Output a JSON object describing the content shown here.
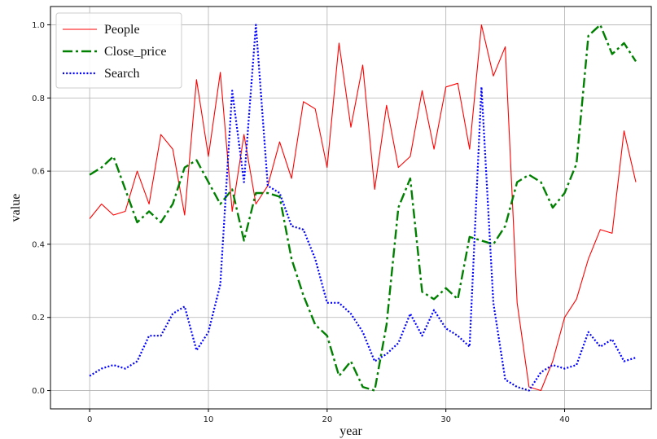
{
  "chart_data": {
    "type": "line",
    "title": "",
    "xlabel": "year",
    "ylabel": "value",
    "xlim": [
      -3.3,
      47.3
    ],
    "ylim": [
      -0.05,
      1.05
    ],
    "xticks": [
      0,
      10,
      20,
      30,
      40
    ],
    "yticks": [
      0.0,
      0.2,
      0.4,
      0.6,
      0.8,
      1.0
    ],
    "xtick_labels": [
      "0",
      "10",
      "20",
      "30",
      "40"
    ],
    "ytick_labels": [
      "0.0",
      "0.2",
      "0.4",
      "0.6",
      "0.8",
      "1.0"
    ],
    "grid": true,
    "legend_position": "upper-left",
    "x": [
      0,
      1,
      2,
      3,
      4,
      5,
      6,
      7,
      8,
      9,
      10,
      11,
      12,
      13,
      14,
      15,
      16,
      17,
      18,
      19,
      20,
      21,
      22,
      23,
      24,
      25,
      26,
      27,
      28,
      29,
      30,
      31,
      32,
      33,
      34,
      35,
      36,
      37,
      38,
      39,
      40,
      41,
      42,
      43,
      44,
      45,
      46
    ],
    "series": [
      {
        "name": "People",
        "color": "#ff0000",
        "style": "solid",
        "values": [
          0.47,
          0.51,
          0.48,
          0.49,
          0.6,
          0.51,
          0.7,
          0.66,
          0.48,
          0.85,
          0.64,
          0.87,
          0.49,
          0.7,
          0.51,
          0.56,
          0.68,
          0.58,
          0.79,
          0.77,
          0.61,
          0.95,
          0.72,
          0.89,
          0.55,
          0.78,
          0.61,
          0.64,
          0.82,
          0.66,
          0.83,
          0.84,
          0.66,
          1.0,
          0.86,
          0.94,
          0.24,
          0.01,
          0.0,
          0.08,
          0.2,
          0.25,
          0.36,
          0.44,
          0.43,
          0.71,
          0.57
        ]
      },
      {
        "name": "Close_price",
        "color": "#008000",
        "style": "dashdot",
        "values": [
          0.59,
          0.61,
          0.64,
          0.55,
          0.46,
          0.49,
          0.46,
          0.51,
          0.61,
          0.63,
          0.57,
          0.51,
          0.55,
          0.41,
          0.54,
          0.54,
          0.53,
          0.36,
          0.26,
          0.18,
          0.15,
          0.04,
          0.08,
          0.01,
          0.0,
          0.18,
          0.5,
          0.58,
          0.27,
          0.25,
          0.28,
          0.25,
          0.42,
          0.41,
          0.4,
          0.45,
          0.57,
          0.59,
          0.57,
          0.5,
          0.54,
          0.62,
          0.97,
          1.0,
          0.92,
          0.95,
          0.9
        ]
      },
      {
        "name": "Search",
        "color": "#0000ff",
        "style": "dotted",
        "values": [
          0.04,
          0.06,
          0.07,
          0.06,
          0.08,
          0.15,
          0.15,
          0.21,
          0.23,
          0.11,
          0.16,
          0.29,
          0.82,
          0.57,
          1.0,
          0.56,
          0.54,
          0.45,
          0.44,
          0.36,
          0.24,
          0.24,
          0.21,
          0.16,
          0.08,
          0.1,
          0.13,
          0.21,
          0.15,
          0.22,
          0.17,
          0.15,
          0.12,
          0.83,
          0.24,
          0.03,
          0.01,
          0.0,
          0.05,
          0.07,
          0.06,
          0.07,
          0.16,
          0.12,
          0.14,
          0.08,
          0.09
        ]
      }
    ]
  }
}
